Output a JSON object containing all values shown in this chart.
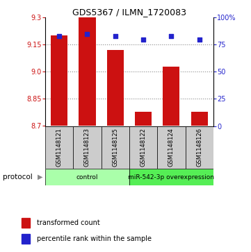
{
  "title": "GDS5367 / ILMN_1720083",
  "samples": [
    "GSM1148121",
    "GSM1148123",
    "GSM1148125",
    "GSM1148122",
    "GSM1148124",
    "GSM1148126"
  ],
  "transformed_counts": [
    9.2,
    9.3,
    9.12,
    8.78,
    9.03,
    8.78
  ],
  "percentile_ranks": [
    83,
    85,
    83,
    80,
    83,
    80
  ],
  "ylim_left": [
    8.7,
    9.3
  ],
  "yticks_left": [
    8.7,
    8.85,
    9.0,
    9.15,
    9.3
  ],
  "ylim_right": [
    0,
    100
  ],
  "yticks_right": [
    0,
    25,
    50,
    75,
    100
  ],
  "bar_color": "#cc1111",
  "scatter_color": "#2222cc",
  "groups": [
    {
      "label": "control",
      "indices": [
        0,
        1,
        2
      ],
      "color": "#aaffaa"
    },
    {
      "label": "miR-542-3p overexpression",
      "indices": [
        3,
        4,
        5
      ],
      "color": "#55ee55"
    }
  ],
  "bar_width": 0.6,
  "grid_color": "#888888",
  "background_color": "#ffffff",
  "label_box_color": "#cccccc",
  "title_fontsize": 9,
  "tick_fontsize": 7,
  "sample_fontsize": 6,
  "group_fontsize": 6.5,
  "legend_fontsize": 7
}
